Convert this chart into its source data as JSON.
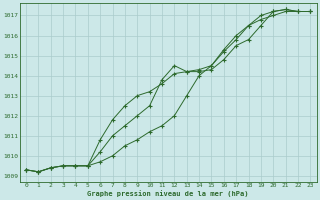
{
  "title": "Graphe pression niveau de la mer (hPa)",
  "background_color": "#cce8e8",
  "grid_color": "#aacccc",
  "line_color": "#2d6a2d",
  "marker_color": "#2d6a2d",
  "xlim": [
    -0.5,
    23.5
  ],
  "ylim": [
    1008.7,
    1017.6
  ],
  "yticks": [
    1009,
    1010,
    1011,
    1012,
    1013,
    1014,
    1015,
    1016,
    1017
  ],
  "xticks": [
    0,
    1,
    2,
    3,
    4,
    5,
    6,
    7,
    8,
    9,
    10,
    11,
    12,
    13,
    14,
    15,
    16,
    17,
    18,
    19,
    20,
    21,
    22,
    23
  ],
  "series1_x": [
    0,
    1,
    2,
    3,
    4,
    5,
    6,
    7,
    8,
    9,
    10,
    11,
    12,
    13,
    14,
    15,
    16,
    17,
    18,
    19,
    20,
    21,
    22,
    23
  ],
  "series1_y": [
    1009.3,
    1009.2,
    1009.4,
    1009.5,
    1009.5,
    1009.5,
    1010.2,
    1011.0,
    1011.5,
    1012.0,
    1012.5,
    1013.8,
    1014.5,
    1014.2,
    1014.2,
    1014.3,
    1014.8,
    1015.5,
    1015.8,
    1016.5,
    1017.2,
    1017.3,
    1017.2,
    1017.2
  ],
  "series2_x": [
    0,
    1,
    2,
    3,
    4,
    5,
    6,
    7,
    8,
    9,
    10,
    11,
    12,
    13,
    14,
    15,
    16,
    17,
    18,
    19,
    20,
    21,
    22,
    23
  ],
  "series2_y": [
    1009.3,
    1009.2,
    1009.4,
    1009.5,
    1009.5,
    1009.5,
    1010.8,
    1011.8,
    1012.5,
    1013.0,
    1013.2,
    1013.6,
    1014.1,
    1014.2,
    1014.3,
    1014.5,
    1015.2,
    1015.8,
    1016.5,
    1016.8,
    1017.0,
    1017.2,
    1017.2,
    1017.2
  ],
  "series3_x": [
    0,
    1,
    2,
    3,
    4,
    5,
    6,
    7,
    8,
    9,
    10,
    11,
    12,
    13,
    14,
    15,
    16,
    17,
    18,
    19,
    20,
    21,
    22,
    23
  ],
  "series3_y": [
    1009.3,
    1009.2,
    1009.4,
    1009.5,
    1009.5,
    1009.5,
    1009.7,
    1010.0,
    1010.5,
    1010.8,
    1011.2,
    1011.5,
    1012.0,
    1013.0,
    1014.0,
    1014.5,
    1015.3,
    1016.0,
    1016.5,
    1017.0,
    1017.2,
    1017.3,
    1017.2,
    1017.2
  ]
}
